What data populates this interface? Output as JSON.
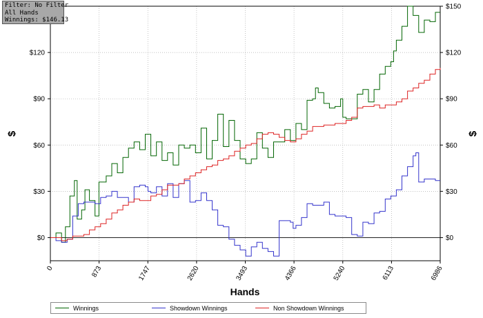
{
  "info_box": {
    "filter": "Filter: No Filter",
    "hands": "All Hands",
    "winnings": "Winnings: $146.13"
  },
  "legend": {
    "items": [
      {
        "label": "Winnings",
        "color": "#006400"
      },
      {
        "label": "Showdown Winnings",
        "color": "#3333cc"
      },
      {
        "label": "Non Showdown Winnings",
        "color": "#dd2222"
      }
    ]
  },
  "chart_data": {
    "type": "line",
    "xlabel": "Hands",
    "ylabel_left": "$",
    "ylabel_right": "$",
    "xlim": [
      0,
      6986
    ],
    "ylim": [
      -15,
      150
    ],
    "x_ticks": [
      0,
      873,
      1747,
      2620,
      3493,
      4366,
      5240,
      6113,
      6986
    ],
    "y_ticks": [
      {
        "value": 0,
        "label": "$0"
      },
      {
        "value": 30,
        "label": "$30"
      },
      {
        "value": 60,
        "label": "$60"
      },
      {
        "value": 90,
        "label": "$90"
      },
      {
        "value": 120,
        "label": "$120"
      },
      {
        "value": 150,
        "label": "$150"
      }
    ],
    "grid": true,
    "zero_line": true,
    "series": [
      {
        "name": "Winnings",
        "color": "#006400",
        "points": [
          [
            0,
            0
          ],
          [
            100,
            3
          ],
          [
            200,
            -3
          ],
          [
            270,
            7
          ],
          [
            350,
            27
          ],
          [
            430,
            37
          ],
          [
            480,
            12
          ],
          [
            560,
            18
          ],
          [
            620,
            31
          ],
          [
            700,
            24
          ],
          [
            800,
            14
          ],
          [
            870,
            36
          ],
          [
            1000,
            40
          ],
          [
            1100,
            48
          ],
          [
            1200,
            42
          ],
          [
            1300,
            52
          ],
          [
            1400,
            58
          ],
          [
            1500,
            62
          ],
          [
            1600,
            57
          ],
          [
            1700,
            67
          ],
          [
            1800,
            53
          ],
          [
            1900,
            62
          ],
          [
            2000,
            50
          ],
          [
            2100,
            55
          ],
          [
            2200,
            47
          ],
          [
            2300,
            60
          ],
          [
            2400,
            58
          ],
          [
            2500,
            60
          ],
          [
            2600,
            55
          ],
          [
            2700,
            71
          ],
          [
            2800,
            51
          ],
          [
            2900,
            63
          ],
          [
            3000,
            80
          ],
          [
            3100,
            59
          ],
          [
            3200,
            76
          ],
          [
            3300,
            63
          ],
          [
            3400,
            51
          ],
          [
            3500,
            48
          ],
          [
            3600,
            51
          ],
          [
            3700,
            68
          ],
          [
            3800,
            58
          ],
          [
            3900,
            52
          ],
          [
            4000,
            62
          ],
          [
            4100,
            62
          ],
          [
            4200,
            70
          ],
          [
            4300,
            63
          ],
          [
            4400,
            74
          ],
          [
            4500,
            70
          ],
          [
            4600,
            89
          ],
          [
            4700,
            90
          ],
          [
            4750,
            97
          ],
          [
            4800,
            94
          ],
          [
            4900,
            87
          ],
          [
            5000,
            84
          ],
          [
            5100,
            85
          ],
          [
            5200,
            90
          ],
          [
            5240,
            78
          ],
          [
            5300,
            77
          ],
          [
            5400,
            77
          ],
          [
            5500,
            93
          ],
          [
            5600,
            96
          ],
          [
            5700,
            88
          ],
          [
            5800,
            96
          ],
          [
            5900,
            106
          ],
          [
            6000,
            111
          ],
          [
            6100,
            114
          ],
          [
            6150,
            121
          ],
          [
            6200,
            128
          ],
          [
            6300,
            137
          ],
          [
            6400,
            150
          ],
          [
            6500,
            144
          ],
          [
            6600,
            133
          ],
          [
            6700,
            141
          ],
          [
            6800,
            140
          ],
          [
            6900,
            146
          ],
          [
            6986,
            146
          ]
        ]
      },
      {
        "name": "Showdown Winnings",
        "color": "#3333cc",
        "points": [
          [
            0,
            0
          ],
          [
            100,
            -2
          ],
          [
            200,
            -3
          ],
          [
            300,
            -1
          ],
          [
            400,
            14
          ],
          [
            500,
            22
          ],
          [
            600,
            23
          ],
          [
            700,
            23
          ],
          [
            800,
            22
          ],
          [
            900,
            26
          ],
          [
            1000,
            27
          ],
          [
            1100,
            30
          ],
          [
            1200,
            26
          ],
          [
            1300,
            26
          ],
          [
            1400,
            23
          ],
          [
            1500,
            33
          ],
          [
            1600,
            34
          ],
          [
            1700,
            33
          ],
          [
            1750,
            30
          ],
          [
            1800,
            29
          ],
          [
            1900,
            33
          ],
          [
            2000,
            27
          ],
          [
            2100,
            35
          ],
          [
            2200,
            26
          ],
          [
            2300,
            35
          ],
          [
            2400,
            37
          ],
          [
            2500,
            23
          ],
          [
            2600,
            24
          ],
          [
            2700,
            29
          ],
          [
            2800,
            24
          ],
          [
            2900,
            18
          ],
          [
            3000,
            8
          ],
          [
            3100,
            7
          ],
          [
            3200,
            -1
          ],
          [
            3300,
            -5
          ],
          [
            3400,
            -8
          ],
          [
            3500,
            -12
          ],
          [
            3600,
            -6
          ],
          [
            3700,
            -3
          ],
          [
            3800,
            -7
          ],
          [
            3900,
            -9
          ],
          [
            4000,
            -12
          ],
          [
            4100,
            11
          ],
          [
            4200,
            11
          ],
          [
            4300,
            10
          ],
          [
            4350,
            6
          ],
          [
            4400,
            8
          ],
          [
            4500,
            13
          ],
          [
            4600,
            22
          ],
          [
            4700,
            21
          ],
          [
            4800,
            21
          ],
          [
            4900,
            23
          ],
          [
            5000,
            15
          ],
          [
            5100,
            14
          ],
          [
            5200,
            14
          ],
          [
            5300,
            13
          ],
          [
            5400,
            2
          ],
          [
            5500,
            1
          ],
          [
            5600,
            10
          ],
          [
            5700,
            9
          ],
          [
            5800,
            16
          ],
          [
            5900,
            17
          ],
          [
            6000,
            25
          ],
          [
            6100,
            27
          ],
          [
            6200,
            31
          ],
          [
            6300,
            40
          ],
          [
            6400,
            46
          ],
          [
            6500,
            53
          ],
          [
            6550,
            55
          ],
          [
            6600,
            36
          ],
          [
            6700,
            38
          ],
          [
            6800,
            38
          ],
          [
            6900,
            37
          ],
          [
            6986,
            37
          ]
        ]
      },
      {
        "name": "Non Showdown Winnings",
        "color": "#dd2222",
        "points": [
          [
            0,
            0
          ],
          [
            100,
            0
          ],
          [
            200,
            -2
          ],
          [
            300,
            -1
          ],
          [
            400,
            1
          ],
          [
            500,
            1
          ],
          [
            600,
            2
          ],
          [
            700,
            5
          ],
          [
            800,
            7
          ],
          [
            900,
            9
          ],
          [
            1000,
            12
          ],
          [
            1100,
            16
          ],
          [
            1200,
            18
          ],
          [
            1300,
            21
          ],
          [
            1400,
            23
          ],
          [
            1500,
            25
          ],
          [
            1600,
            24
          ],
          [
            1700,
            24
          ],
          [
            1800,
            27
          ],
          [
            1900,
            28
          ],
          [
            2000,
            31
          ],
          [
            2100,
            34
          ],
          [
            2200,
            34
          ],
          [
            2300,
            35
          ],
          [
            2400,
            38
          ],
          [
            2500,
            40
          ],
          [
            2600,
            42
          ],
          [
            2700,
            44
          ],
          [
            2800,
            46
          ],
          [
            2900,
            47
          ],
          [
            3000,
            50
          ],
          [
            3100,
            51
          ],
          [
            3200,
            53
          ],
          [
            3300,
            56
          ],
          [
            3400,
            58
          ],
          [
            3500,
            60
          ],
          [
            3600,
            61
          ],
          [
            3700,
            64
          ],
          [
            3800,
            67
          ],
          [
            3900,
            68
          ],
          [
            4000,
            67
          ],
          [
            4100,
            65
          ],
          [
            4200,
            63
          ],
          [
            4300,
            62
          ],
          [
            4400,
            64
          ],
          [
            4500,
            67
          ],
          [
            4600,
            69
          ],
          [
            4700,
            72
          ],
          [
            4800,
            72
          ],
          [
            4900,
            73
          ],
          [
            5000,
            73
          ],
          [
            5100,
            74
          ],
          [
            5200,
            74
          ],
          [
            5300,
            76
          ],
          [
            5400,
            78
          ],
          [
            5500,
            84
          ],
          [
            5600,
            85
          ],
          [
            5700,
            85
          ],
          [
            5800,
            86
          ],
          [
            5900,
            84
          ],
          [
            6000,
            86
          ],
          [
            6100,
            86
          ],
          [
            6200,
            88
          ],
          [
            6300,
            90
          ],
          [
            6400,
            95
          ],
          [
            6500,
            97
          ],
          [
            6600,
            100
          ],
          [
            6700,
            102
          ],
          [
            6800,
            106
          ],
          [
            6900,
            109
          ],
          [
            6986,
            110
          ]
        ]
      }
    ]
  }
}
